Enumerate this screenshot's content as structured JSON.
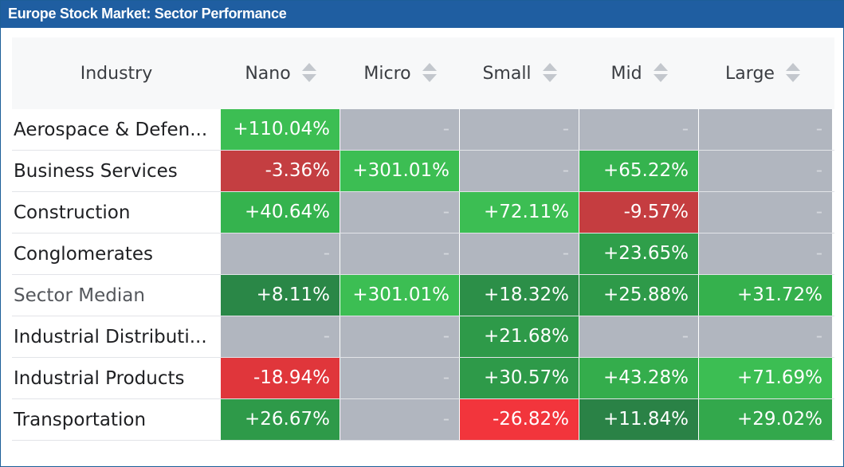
{
  "title": "Europe Stock Market: Sector Performance",
  "columns": [
    "Industry",
    "Nano",
    "Micro",
    "Small",
    "Mid",
    "Large"
  ],
  "colors": {
    "empty": "#b1b6bf",
    "strong_green": "#2faa4a",
    "light_green": "#3cc154",
    "dark_green": "#2a8a47",
    "green": "#35b04d",
    "red": "#e7343a",
    "dark_red": "#c33b3f",
    "title_bg": "#1f5ea1"
  },
  "rows": [
    {
      "name": "Aerospace & Defen...",
      "cells": [
        {
          "text": "+110.04%",
          "color": "#3cbe53"
        },
        {
          "text": "-",
          "color": "#b1b6bf"
        },
        {
          "text": "-",
          "color": "#b1b6bf"
        },
        {
          "text": "-",
          "color": "#b1b6bf"
        },
        {
          "text": "-",
          "color": "#b1b6bf"
        }
      ]
    },
    {
      "name": "Business Services",
      "cells": [
        {
          "text": "-3.36%",
          "color": "#c43e41"
        },
        {
          "text": "+301.01%",
          "color": "#3cbe53"
        },
        {
          "text": "-",
          "color": "#b1b6bf"
        },
        {
          "text": "+65.22%",
          "color": "#35b34e"
        },
        {
          "text": "-",
          "color": "#b1b6bf"
        }
      ]
    },
    {
      "name": "Construction",
      "cells": [
        {
          "text": "+40.64%",
          "color": "#35b34e"
        },
        {
          "text": "-",
          "color": "#b1b6bf"
        },
        {
          "text": "+72.11%",
          "color": "#3cbe53"
        },
        {
          "text": "-9.57%",
          "color": "#c53d40"
        },
        {
          "text": "-",
          "color": "#b1b6bf"
        }
      ]
    },
    {
      "name": "Conglomerates",
      "cells": [
        {
          "text": "-",
          "color": "#b1b6bf"
        },
        {
          "text": "-",
          "color": "#b1b6bf"
        },
        {
          "text": "-",
          "color": "#b1b6bf"
        },
        {
          "text": "+23.65%",
          "color": "#2f9f4a"
        },
        {
          "text": "-",
          "color": "#b1b6bf"
        }
      ]
    },
    {
      "name": "Sector Median",
      "median": true,
      "cells": [
        {
          "text": "+8.11%",
          "color": "#2a8747"
        },
        {
          "text": "+301.01%",
          "color": "#3cbe53"
        },
        {
          "text": "+18.32%",
          "color": "#2c8f48"
        },
        {
          "text": "+25.88%",
          "color": "#2e9a49"
        },
        {
          "text": "+31.72%",
          "color": "#35b14d"
        }
      ]
    },
    {
      "name": "Industrial Distributi...",
      "cells": [
        {
          "text": "-",
          "color": "#b1b6bf"
        },
        {
          "text": "-",
          "color": "#b1b6bf"
        },
        {
          "text": "+21.68%",
          "color": "#2e9a49"
        },
        {
          "text": "-",
          "color": "#b1b6bf"
        },
        {
          "text": "-",
          "color": "#b1b6bf"
        }
      ]
    },
    {
      "name": "Industrial Products",
      "cells": [
        {
          "text": "-18.94%",
          "color": "#e0363b"
        },
        {
          "text": "-",
          "color": "#b1b6bf"
        },
        {
          "text": "+30.57%",
          "color": "#2e9a49"
        },
        {
          "text": "+43.28%",
          "color": "#34ad4c"
        },
        {
          "text": "+71.69%",
          "color": "#3cbe53"
        }
      ]
    },
    {
      "name": "Transportation",
      "cells": [
        {
          "text": "+26.67%",
          "color": "#2e9a49"
        },
        {
          "text": "-",
          "color": "#b1b6bf"
        },
        {
          "text": "-26.82%",
          "color": "#f2353c"
        },
        {
          "text": "+11.84%",
          "color": "#2a8246"
        },
        {
          "text": "+29.02%",
          "color": "#33a84c"
        }
      ]
    }
  ]
}
